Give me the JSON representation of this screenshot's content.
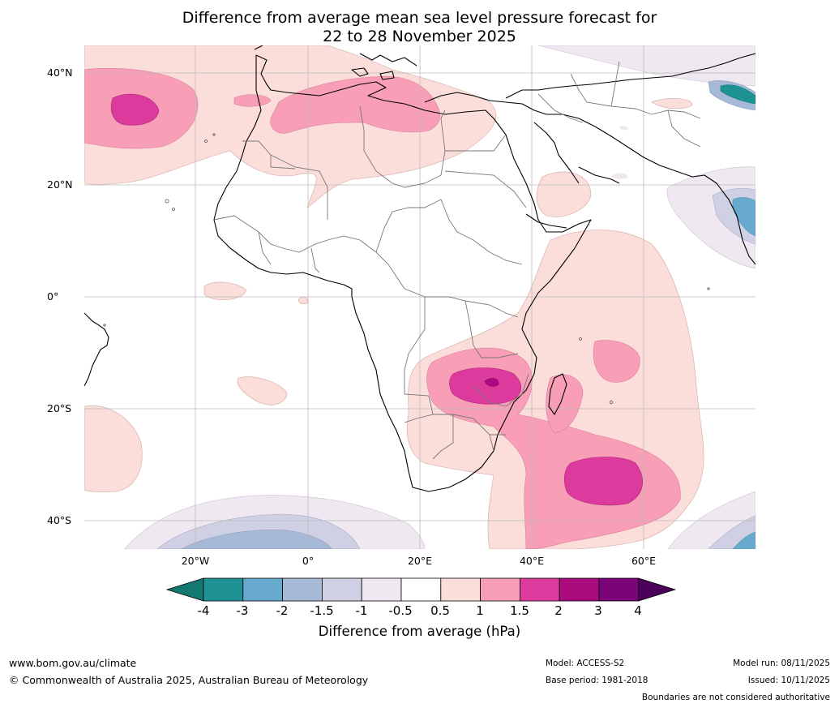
{
  "title": {
    "line1": "Difference from average mean sea level pressure forecast for",
    "line2": "22 to 28 November 2025"
  },
  "map": {
    "region": "Africa and surrounding oceans",
    "lat_labels": [
      "40°N",
      "20°N",
      "0°",
      "20°S",
      "40°S"
    ],
    "lon_labels": [
      "20°W",
      "0°",
      "20°E",
      "40°E",
      "60°E"
    ],
    "features": {
      "positive_anomaly_max": "Zambia-Malawi-Mozambique region",
      "negative_anomaly": "Himalayan foothills and southern ocean"
    }
  },
  "colorbar": {
    "ticks": [
      "-4",
      "-3",
      "-2",
      "-1.5",
      "-1",
      "-0.5",
      "0.5",
      "1",
      "1.5",
      "2",
      "3",
      "4"
    ],
    "colors": [
      "#13786e",
      "#1f9296",
      "#68aacd",
      "#a6b9d7",
      "#cfd0e3",
      "#efe8f0",
      "#ffffff",
      "#fbdeda",
      "#f89eb6",
      "#dc3a9c",
      "#ac0b7f",
      "#7a0478",
      "#4b0059"
    ],
    "label": "Difference from average (hPa)"
  },
  "footer": {
    "website": "www.bom.gov.au/climate",
    "copyright": "© Commonwealth of Australia 2025, Australian Bureau of Meteorology",
    "model": "Model: ACCESS-S2",
    "base_period": "Base period: 1981-2018",
    "model_run": "Model run: 08/11/2025",
    "issued": "Issued: 10/11/2025",
    "disclaimer": "Boundaries are not considered authoritative"
  }
}
